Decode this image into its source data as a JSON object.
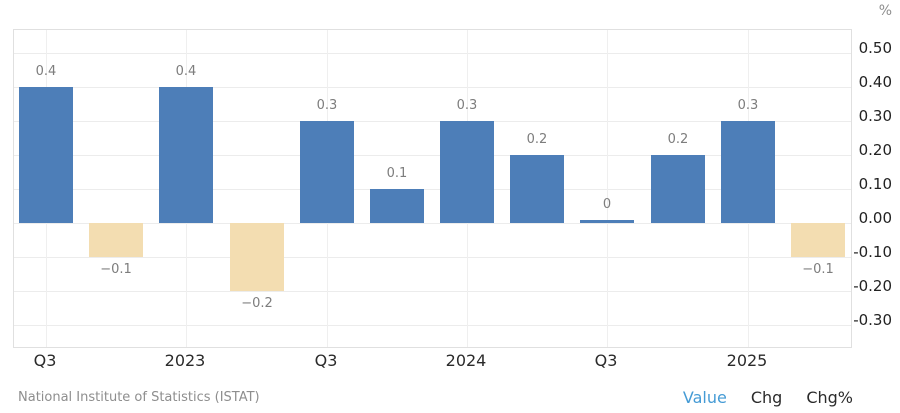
{
  "footer": {
    "source": "National Institute of Statistics (ISTAT)",
    "modes": [
      {
        "label": "Value",
        "active": true
      },
      {
        "label": "Chg",
        "active": false
      },
      {
        "label": "Chg%",
        "active": false
      }
    ]
  },
  "chart_data": {
    "type": "bar",
    "title": "",
    "unit_label": "%",
    "values": [
      0.4,
      -0.1,
      0.4,
      -0.2,
      0.3,
      0.1,
      0.3,
      0.2,
      0,
      0.2,
      0.3,
      -0.1
    ],
    "value_labels": [
      "0.4",
      "−0.1",
      "0.4",
      "−0.2",
      "0.3",
      "0.1",
      "0.3",
      "0.2",
      "0",
      "0.2",
      "0.3",
      "−0.1"
    ],
    "x_tick_labels": [
      "Q3",
      "",
      "2023",
      "",
      "Q3",
      "",
      "2024",
      "",
      "Q3",
      "",
      "2025",
      ""
    ],
    "y_ticks": [
      0.5,
      0.4,
      0.3,
      0.2,
      0.1,
      0,
      -0.1,
      -0.2,
      -0.3
    ],
    "y_tick_labels": [
      "0.50",
      "0.40",
      "0.30",
      "0.20",
      "0.10",
      "0.00",
      "-0.10",
      "-0.20",
      "-0.30"
    ],
    "ylim": [
      -0.374,
      0.568
    ],
    "grid": true,
    "legend": "none",
    "axis_side": "right",
    "colors": {
      "positive": "#4d7eb8",
      "negative": "#f3ddb1",
      "grid": "#ececec",
      "grid_vertical": "#efefef",
      "border": "#e0e0e0",
      "value_label": "#7d7d7d",
      "y_tick_label": "#222222",
      "x_tick_label": "#2b2b2b",
      "unit": "#8e8e8e",
      "source": "#8e8e8e",
      "mode_active": "#459bd5",
      "mode_inactive": "#2b2b2b"
    }
  }
}
